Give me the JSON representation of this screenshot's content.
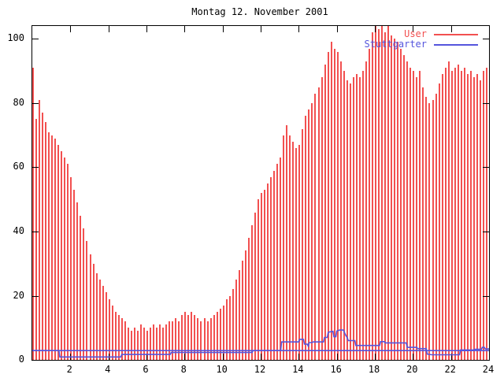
{
  "title": "Montag 12. November 2001",
  "colors": {
    "user_red": "#f25050",
    "stuttgarter_blue": "#5555dd",
    "axis_black": "#000000",
    "background": "#ffffff"
  },
  "legend": {
    "items": [
      {
        "label": "User",
        "color": "#f25050"
      },
      {
        "label": "Stuttgarter",
        "color": "#5555dd"
      }
    ]
  },
  "chart_data": {
    "type": "bar",
    "title": "Montag 12. November 2001",
    "xlabel": "",
    "ylabel": "",
    "xlim": [
      0,
      24
    ],
    "ylim": [
      0,
      104
    ],
    "x_ticks": [
      2,
      4,
      6,
      8,
      10,
      12,
      14,
      16,
      18,
      20,
      22,
      24
    ],
    "y_ticks": [
      0,
      20,
      40,
      60,
      80,
      100
    ],
    "grid": false,
    "legend_position": "top-right-inside",
    "x_unit": "hour of day",
    "sample_interval_hours": 0.1667,
    "series": [
      {
        "name": "User",
        "style": "impulses",
        "color": "#f25050",
        "values": [
          91,
          75,
          81,
          77,
          74,
          71,
          70,
          69,
          67,
          65,
          63,
          61,
          57,
          53,
          49,
          45,
          41,
          37,
          33,
          30,
          27,
          25,
          23,
          21,
          19,
          17,
          15,
          14,
          13,
          12,
          10,
          9,
          10,
          9,
          11,
          10,
          9,
          10,
          11,
          10,
          11,
          10,
          11,
          12,
          12,
          13,
          12,
          14,
          15,
          14,
          15,
          14,
          13,
          12,
          13,
          12,
          13,
          14,
          15,
          16,
          17,
          19,
          20,
          22,
          25,
          28,
          31,
          34,
          38,
          42,
          46,
          50,
          52,
          53,
          55,
          57,
          59,
          61,
          63,
          70,
          73,
          70,
          68,
          66,
          67,
          72,
          76,
          78,
          80,
          83,
          85,
          88,
          92,
          96,
          99,
          97,
          96,
          93,
          90,
          87,
          86,
          88,
          89,
          88,
          90,
          93,
          97,
          102,
          104,
          103,
          104,
          102,
          104,
          101,
          100,
          99,
          97,
          95,
          93,
          91,
          90,
          88,
          90,
          85,
          82,
          80,
          81,
          83,
          86,
          89,
          91,
          93,
          90,
          91,
          92,
          90,
          91,
          89,
          90,
          88,
          89,
          87,
          90,
          91
        ]
      },
      {
        "name": "Stuttgarter",
        "style": "lines",
        "color": "#5555dd",
        "lines": [
          [
            [
              0,
              2.9
            ],
            [
              1.4,
              2.9
            ],
            [
              1.45,
              0.9
            ],
            [
              4.65,
              0.9
            ],
            [
              4.7,
              1.7
            ],
            [
              7.25,
              1.7
            ],
            [
              7.3,
              2.3
            ],
            [
              11.55,
              2.3
            ],
            [
              11.6,
              2.9
            ],
            [
              13.05,
              2.9
            ],
            [
              13.1,
              5.6
            ],
            [
              14.0,
              5.6
            ],
            [
              14.05,
              6.4
            ],
            [
              14.25,
              6.4
            ],
            [
              14.3,
              4.9
            ],
            [
              14.45,
              4.9
            ],
            [
              14.5,
              4.3
            ],
            [
              14.55,
              5.4
            ],
            [
              14.7,
              5.4
            ],
            [
              14.75,
              5.6
            ],
            [
              15.3,
              5.6
            ],
            [
              15.35,
              7.0
            ],
            [
              15.5,
              7.0
            ],
            [
              15.55,
              8.6
            ],
            [
              15.8,
              8.9
            ],
            [
              15.85,
              7.2
            ],
            [
              15.95,
              7.2
            ],
            [
              16.0,
              9.0
            ],
            [
              16.15,
              9.3
            ],
            [
              16.35,
              9.3
            ],
            [
              16.45,
              7.9
            ],
            [
              16.55,
              6.9
            ],
            [
              16.6,
              6.0
            ],
            [
              16.95,
              6.0
            ],
            [
              17.0,
              4.5
            ],
            [
              18.25,
              4.5
            ],
            [
              18.3,
              5.7
            ],
            [
              18.5,
              5.7
            ],
            [
              18.55,
              5.3
            ],
            [
              19.65,
              5.3
            ],
            [
              19.7,
              3.9
            ],
            [
              20.2,
              3.9
            ],
            [
              20.25,
              3.5
            ],
            [
              20.7,
              3.5
            ],
            [
              20.75,
              1.8
            ],
            [
              21.0,
              1.6
            ],
            [
              22.45,
              1.6
            ],
            [
              22.5,
              3.1
            ],
            [
              23.2,
              3.1
            ],
            [
              23.25,
              3.3
            ],
            [
              23.6,
              3.3
            ],
            [
              23.65,
              3.9
            ],
            [
              23.75,
              3.9
            ],
            [
              23.8,
              3.4
            ],
            [
              24,
              3.4
            ]
          ],
          [
            [
              0,
              2.9
            ],
            [
              24,
              2.9
            ]
          ]
        ]
      }
    ]
  }
}
